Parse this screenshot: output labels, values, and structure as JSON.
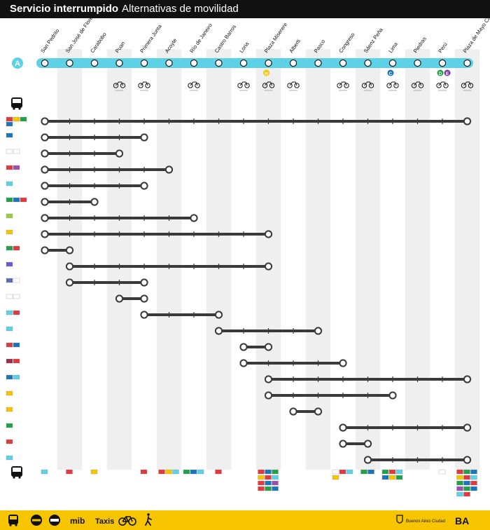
{
  "header": {
    "title_bold": "Servicio interrumpido",
    "title_light": "Alternativas de movilidad"
  },
  "line": {
    "badge": "A",
    "color": "#5dd1e6",
    "stations": [
      {
        "name": "San Pedrito",
        "bike": false
      },
      {
        "name": "San José de Flores",
        "bike": false
      },
      {
        "name": "Carabobo",
        "bike": false
      },
      {
        "name": "Puan",
        "bike": true
      },
      {
        "name": "Primera Junta",
        "bike": true
      },
      {
        "name": "Acoyte",
        "bike": false
      },
      {
        "name": "Río de Janeiro",
        "bike": true
      },
      {
        "name": "Castro Barros",
        "bike": false
      },
      {
        "name": "Loria",
        "bike": true
      },
      {
        "name": "Plaza Miserere",
        "bike": true
      },
      {
        "name": "Alberti",
        "bike": true
      },
      {
        "name": "Pasco",
        "bike": false
      },
      {
        "name": "Congreso",
        "bike": true
      },
      {
        "name": "Sáenz Peña",
        "bike": true
      },
      {
        "name": "Lima",
        "bike": true
      },
      {
        "name": "Piedras",
        "bike": true
      },
      {
        "name": "Perú",
        "bike": true
      },
      {
        "name": "Plaza de Mayo Casa Rosada",
        "bike": true
      }
    ],
    "transfers": [
      {
        "station_index": 9,
        "letter": "H",
        "color": "#f6c500"
      },
      {
        "station_index": 14,
        "letter": "C",
        "color": "#1b75bc"
      },
      {
        "station_index": 16,
        "letter": "D",
        "color": "#23a14a"
      },
      {
        "station_index": 16,
        "letter": "E",
        "color": "#7b3aa0"
      }
    ]
  },
  "bus_routes": [
    {
      "from": 0,
      "to": 17,
      "badges": [
        "#e03a3e",
        "#f6c500",
        "#23a14a",
        "#1b75bc"
      ]
    },
    {
      "from": 0,
      "to": 4,
      "badges": [
        "#1b75bc"
      ]
    },
    {
      "from": 0,
      "to": 3,
      "badges": [
        "#ffffff",
        "#ffffff"
      ]
    },
    {
      "from": 0,
      "to": 5,
      "badges": [
        "#e03a3e",
        "#9b4fb0"
      ]
    },
    {
      "from": 0,
      "to": 4,
      "badges": [
        "#5dd1e6"
      ]
    },
    {
      "from": 0,
      "to": 2,
      "badges": [
        "#23a14a",
        "#1b75bc",
        "#e03a3e"
      ]
    },
    {
      "from": 0,
      "to": 6,
      "badges": [
        "#9ccd3a"
      ]
    },
    {
      "from": 0,
      "to": 9,
      "badges": [
        "#f6c500"
      ]
    },
    {
      "from": 0,
      "to": 1,
      "badges": [
        "#23a14a",
        "#e03a3e"
      ]
    },
    {
      "from": 1,
      "to": 9,
      "badges": [
        "#6a5acd"
      ]
    },
    {
      "from": 1,
      "to": 4,
      "badges": [
        "#5a6fb0",
        "#ffffff"
      ]
    },
    {
      "from": 3,
      "to": 4,
      "badges": [
        "#ffffff",
        "#ffffff"
      ]
    },
    {
      "from": 4,
      "to": 7,
      "badges": [
        "#5dd1e6",
        "#e03a3e"
      ]
    },
    {
      "from": 7,
      "to": 11,
      "badges": [
        "#5dd1e6"
      ]
    },
    {
      "from": 8,
      "to": 9,
      "badges": [
        "#e03a3e",
        "#1b75bc"
      ]
    },
    {
      "from": 8,
      "to": 12,
      "badges": [
        "#9b2c4a",
        "#e03a3e"
      ]
    },
    {
      "from": 9,
      "to": 17,
      "badges": [
        "#1b75bc",
        "#5dd1e6"
      ]
    },
    {
      "from": 9,
      "to": 14,
      "badges": [
        "#f6c500"
      ]
    },
    {
      "from": 10,
      "to": 11,
      "badges": [
        "#f6c500"
      ]
    },
    {
      "from": 12,
      "to": 17,
      "badges": [
        "#23a14a"
      ]
    },
    {
      "from": 12,
      "to": 13,
      "badges": [
        "#e03a3e"
      ]
    },
    {
      "from": 13,
      "to": 17,
      "badges": [
        "#5dd1e6"
      ]
    }
  ],
  "bottom_connections": [
    {
      "station_index": 0,
      "badges": [
        "#5dd1e6"
      ]
    },
    {
      "station_index": 1,
      "badges": [
        "#e03a3e"
      ]
    },
    {
      "station_index": 2,
      "badges": [
        "#f6c500"
      ]
    },
    {
      "station_index": 4,
      "badges": [
        "#e03a3e"
      ]
    },
    {
      "station_index": 5,
      "badges": [
        "#e03a3e",
        "#f6c500",
        "#5dd1e6"
      ]
    },
    {
      "station_index": 6,
      "badges": [
        "#23a14a",
        "#1b75bc",
        "#5dd1e6"
      ]
    },
    {
      "station_index": 7,
      "badges": [
        "#e03a3e"
      ]
    },
    {
      "station_index": 9,
      "badges": [
        "#e03a3e",
        "#1b75bc",
        "#23a14a",
        "#f6c500",
        "#e03a3e",
        "#5dd1e6",
        "#e03a3e",
        "#1b75bc",
        "#9b4fb0",
        "#e03a3e",
        "#23a14a",
        "#1b75bc"
      ]
    },
    {
      "station_index": 12,
      "badges": [
        "#ffffff",
        "#e03a3e",
        "#5dd1e6",
        "#f6c500"
      ]
    },
    {
      "station_index": 13,
      "badges": [
        "#23a14a",
        "#1b75bc"
      ]
    },
    {
      "station_index": 14,
      "badges": [
        "#23a14a",
        "#e03a3e",
        "#5dd1e6",
        "#1b75bc",
        "#f6c500",
        "#23a14a"
      ]
    },
    {
      "station_index": 16,
      "badges": [
        "#ffffff"
      ]
    },
    {
      "station_index": 17,
      "badges": [
        "#e03a3e",
        "#23a14a",
        "#1b75bc",
        "#f6c500",
        "#e03a3e",
        "#5dd1e6",
        "#23a14a",
        "#1b75bc",
        "#e03a3e",
        "#9b4fb0",
        "#23a14a",
        "#1b75bc",
        "#5dd1e6",
        "#e03a3e"
      ]
    }
  ],
  "footer": {
    "items": [
      "mib",
      "Taxis"
    ],
    "org": "Buenos Aires Ciudad",
    "logo": "BA"
  }
}
